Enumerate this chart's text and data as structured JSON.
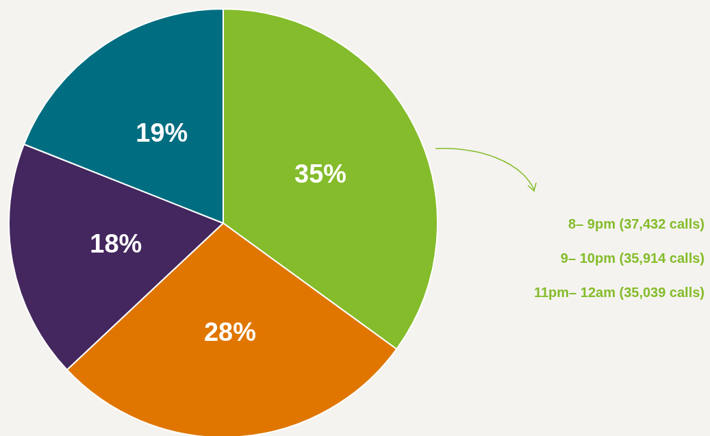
{
  "chart_data": {
    "type": "pie",
    "categories": [
      null,
      null,
      null,
      null
    ],
    "values": [
      35,
      28,
      18,
      19
    ],
    "colors": [
      "#84bc2b",
      "#e07600",
      "#44275e",
      "#006e80"
    ],
    "value_labels": [
      "35%",
      "28%",
      "18%",
      "19%"
    ],
    "annotations": [
      "8– 9pm (37,432 calls)",
      "9– 10pm (35,914 calls)",
      "11pm– 12am (35,039 calls)"
    ]
  }
}
